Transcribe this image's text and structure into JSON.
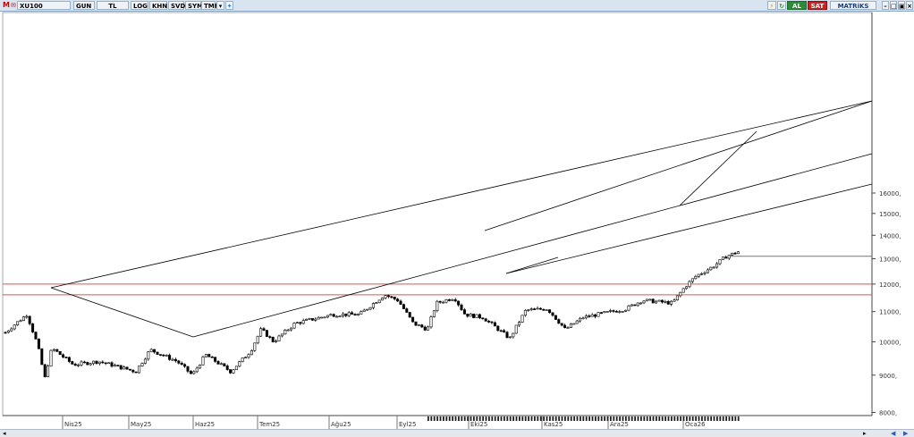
{
  "toolbar": {
    "logo": "M",
    "symbol": "XU100",
    "period": "GUN",
    "currency": "TL",
    "log": "LOG",
    "khn": "KHN",
    "svd": "SVD",
    "sym": "SYM",
    "tmp": "TMP",
    "buy_label": "AL",
    "sell_label": "SAT",
    "brand": "MATRiKS",
    "buy_color": "#2e8b3a",
    "sell_color": "#cc2222"
  },
  "chart_data": {
    "type": "candlestick",
    "x_labels": [
      "Nis25",
      "May25",
      "Haz25",
      "Tem25",
      "Ağu25",
      "Eyl25",
      "Eki25",
      "Kas25",
      "Ara25",
      "Oca26"
    ],
    "y_tick_labels": [
      "16000,",
      "15000,",
      "14000,",
      "13000,",
      "12000,",
      "11000,",
      "10000,",
      "9000,",
      "8000,"
    ],
    "y_ticks": [
      16000,
      15000,
      14000,
      13000,
      12000,
      11000,
      10000,
      9000,
      8000
    ],
    "scale": "log",
    "horizontal_lines": [
      12000,
      11600,
      13100
    ],
    "horizontal_line_colors": [
      "#e05050",
      "#e05050",
      "#777777"
    ],
    "trend_lines_color": "#000000"
  }
}
